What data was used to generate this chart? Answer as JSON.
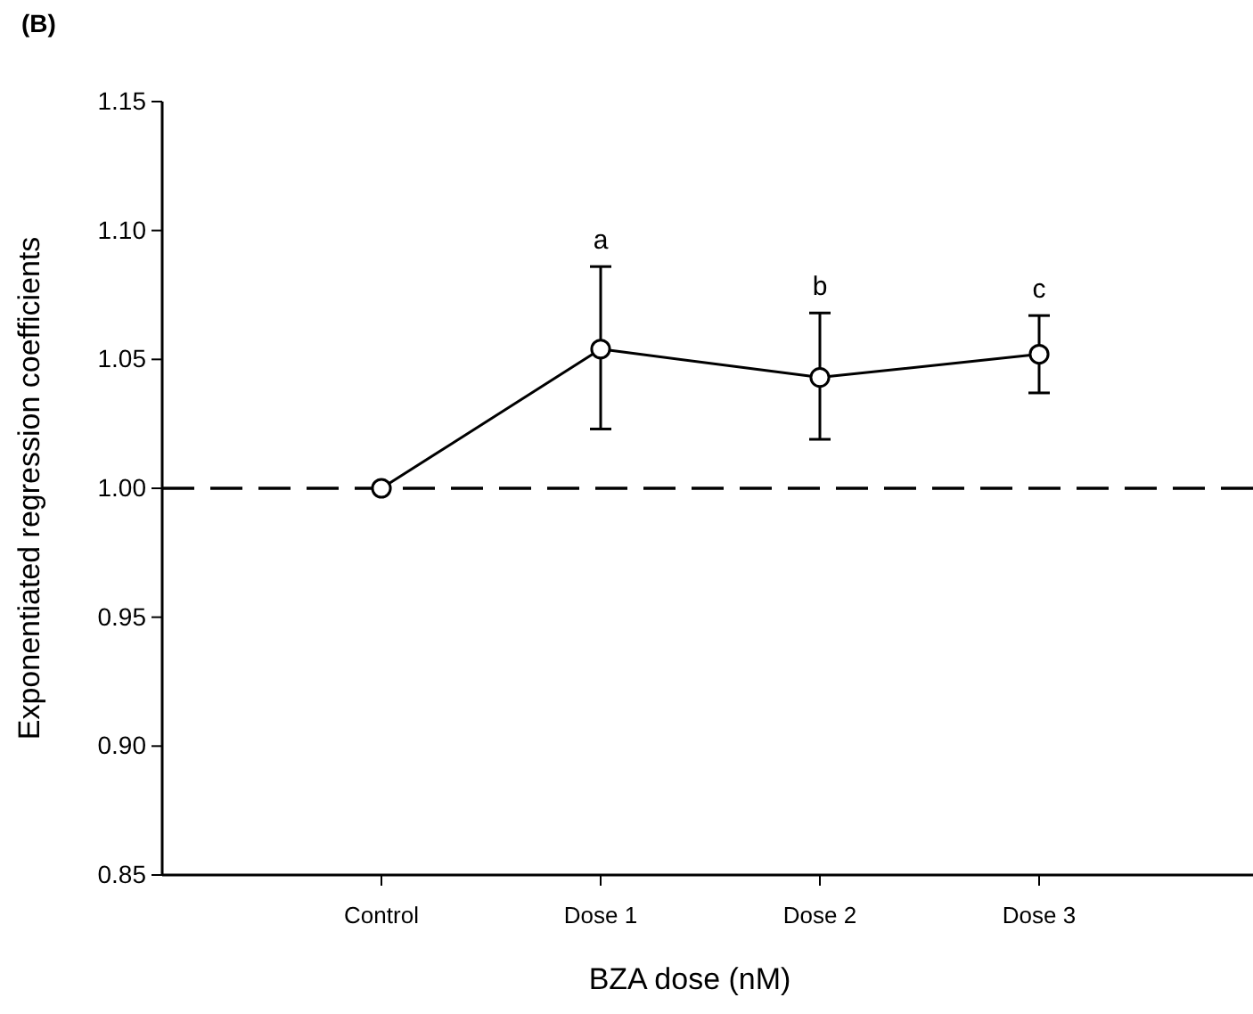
{
  "chart_data": {
    "type": "line",
    "title": "(B)",
    "xlabel": "BZA dose (nM)",
    "ylabel": "Exponentiated regression coefficients",
    "categories": [
      "Control",
      "Dose 1",
      "Dose 2",
      "Dose 3"
    ],
    "series": [
      {
        "color": "#000000",
        "values": [
          1.0,
          1.054,
          1.043,
          1.052
        ],
        "errors": [
          null,
          [
            1.023,
            1.086
          ],
          [
            1.019,
            1.068
          ],
          [
            1.037,
            1.067
          ]
        ]
      }
    ],
    "ylim": [
      0.85,
      1.15
    ],
    "yticks": [
      0.85,
      {
        "value": 0.9,
        "label": "0.90"
      },
      0.95,
      {
        "value": 1.0,
        "label": "1.00"
      },
      1.05,
      {
        "value": 1.1,
        "label": "1.10"
      },
      1.15
    ],
    "marker": "circle",
    "line_style": "solid",
    "grid": false,
    "ref_lines": [
      {
        "axis": "y",
        "value": 1.0,
        "line_style": "dashed",
        "color": "#000000"
      }
    ],
    "annotations": [
      {
        "text": "a",
        "x": "Dose 1",
        "y": 1.086
      },
      {
        "text": "b",
        "x": "Dose 2",
        "y": 1.068
      },
      {
        "text": "c",
        "x": "Dose 3",
        "y": 1.067
      }
    ]
  }
}
